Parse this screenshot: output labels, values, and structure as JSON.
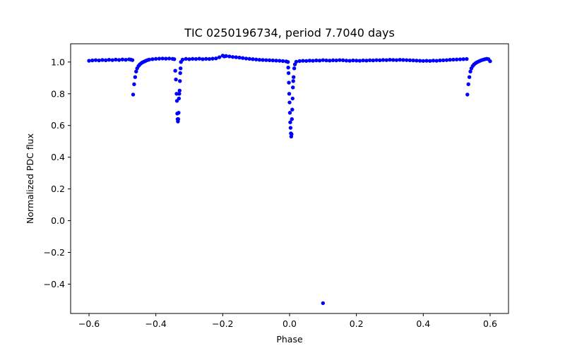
{
  "chart_data": {
    "type": "scatter",
    "title": "TIC 0250196734, period 7.7040 days",
    "xlabel": "Phase",
    "ylabel": "Normalized PDC flux",
    "xlim": [
      -0.655,
      0.655
    ],
    "ylim": [
      -0.585,
      1.115
    ],
    "xticks": [
      -0.6,
      -0.4,
      -0.2,
      0.0,
      0.2,
      0.4,
      0.6
    ],
    "xtick_labels": [
      "−0.6",
      "−0.4",
      "−0.2",
      "0.0",
      "0.2",
      "0.4",
      "0.6"
    ],
    "yticks": [
      -0.4,
      -0.2,
      0.0,
      0.2,
      0.4,
      0.6,
      0.8,
      1.0
    ],
    "ytick_labels": [
      "−0.4",
      "−0.2",
      "0.0",
      "0.2",
      "0.4",
      "0.6",
      "0.8",
      "1.0"
    ],
    "marker_color": "#0000ff",
    "grid": false,
    "series": [
      {
        "name": "PDC flux",
        "points": [
          [
            -0.6,
            1.008
          ],
          [
            -0.59,
            1.01
          ],
          [
            -0.58,
            1.012
          ],
          [
            -0.57,
            1.01
          ],
          [
            -0.56,
            1.013
          ],
          [
            -0.55,
            1.011
          ],
          [
            -0.54,
            1.014
          ],
          [
            -0.53,
            1.012
          ],
          [
            -0.52,
            1.015
          ],
          [
            -0.51,
            1.013
          ],
          [
            -0.5,
            1.016
          ],
          [
            -0.49,
            1.014
          ],
          [
            -0.48,
            1.017
          ],
          [
            -0.475,
            1.015
          ],
          [
            -0.47,
            1.012
          ],
          [
            -0.468,
            0.795
          ],
          [
            -0.465,
            0.86
          ],
          [
            -0.462,
            0.905
          ],
          [
            -0.459,
            0.94
          ],
          [
            -0.456,
            0.96
          ],
          [
            -0.452,
            0.975
          ],
          [
            -0.448,
            0.985
          ],
          [
            -0.444,
            0.992
          ],
          [
            -0.44,
            0.998
          ],
          [
            -0.435,
            1.003
          ],
          [
            -0.43,
            1.008
          ],
          [
            -0.425,
            1.012
          ],
          [
            -0.42,
            1.015
          ],
          [
            -0.41,
            1.018
          ],
          [
            -0.4,
            1.02
          ],
          [
            -0.39,
            1.021
          ],
          [
            -0.38,
            1.022
          ],
          [
            -0.37,
            1.021
          ],
          [
            -0.36,
            1.022
          ],
          [
            -0.35,
            1.02
          ],
          [
            -0.345,
            1.018
          ],
          [
            -0.342,
            0.945
          ],
          [
            -0.34,
            0.89
          ],
          [
            -0.338,
            0.8
          ],
          [
            -0.337,
            0.755
          ],
          [
            -0.336,
            0.675
          ],
          [
            -0.335,
            0.64
          ],
          [
            -0.334,
            0.625
          ],
          [
            -0.333,
            0.64
          ],
          [
            -0.332,
            0.68
          ],
          [
            -0.331,
            0.77
          ],
          [
            -0.33,
            0.8
          ],
          [
            -0.329,
            0.82
          ],
          [
            -0.328,
            0.88
          ],
          [
            -0.327,
            0.93
          ],
          [
            -0.326,
            0.96
          ],
          [
            -0.325,
            1.0
          ],
          [
            -0.32,
            1.015
          ],
          [
            -0.31,
            1.02
          ],
          [
            -0.3,
            1.018
          ],
          [
            -0.29,
            1.02
          ],
          [
            -0.28,
            1.019
          ],
          [
            -0.27,
            1.021
          ],
          [
            -0.26,
            1.018
          ],
          [
            -0.25,
            1.02
          ],
          [
            -0.24,
            1.019
          ],
          [
            -0.23,
            1.021
          ],
          [
            -0.22,
            1.023
          ],
          [
            -0.21,
            1.03
          ],
          [
            -0.2,
            1.04
          ],
          [
            -0.195,
            1.035
          ],
          [
            -0.19,
            1.038
          ],
          [
            -0.18,
            1.035
          ],
          [
            -0.17,
            1.032
          ],
          [
            -0.16,
            1.03
          ],
          [
            -0.15,
            1.028
          ],
          [
            -0.14,
            1.025
          ],
          [
            -0.13,
            1.022
          ],
          [
            -0.12,
            1.02
          ],
          [
            -0.11,
            1.018
          ],
          [
            -0.1,
            1.016
          ],
          [
            -0.09,
            1.014
          ],
          [
            -0.08,
            1.013
          ],
          [
            -0.07,
            1.012
          ],
          [
            -0.06,
            1.011
          ],
          [
            -0.05,
            1.01
          ],
          [
            -0.04,
            1.009
          ],
          [
            -0.03,
            1.008
          ],
          [
            -0.02,
            1.006
          ],
          [
            -0.01,
            1.004
          ],
          [
            -0.005,
            1.0
          ],
          [
            -0.004,
            0.965
          ],
          [
            -0.003,
            0.93
          ],
          [
            -0.002,
            0.87
          ],
          [
            -0.001,
            0.8
          ],
          [
            0.0,
            0.745
          ],
          [
            0.001,
            0.68
          ],
          [
            0.002,
            0.62
          ],
          [
            0.003,
            0.585
          ],
          [
            0.004,
            0.55
          ],
          [
            0.005,
            0.53
          ],
          [
            0.006,
            0.545
          ],
          [
            0.007,
            0.64
          ],
          [
            0.008,
            0.7
          ],
          [
            0.009,
            0.77
          ],
          [
            0.01,
            0.84
          ],
          [
            0.011,
            0.88
          ],
          [
            0.012,
            0.905
          ],
          [
            0.014,
            0.96
          ],
          [
            0.016,
            0.985
          ],
          [
            0.02,
            1.002
          ],
          [
            0.03,
            1.006
          ],
          [
            0.04,
            1.008
          ],
          [
            0.05,
            1.007
          ],
          [
            0.06,
            1.009
          ],
          [
            0.07,
            1.008
          ],
          [
            0.08,
            1.01
          ],
          [
            0.09,
            1.009
          ],
          [
            0.1,
            1.012
          ],
          [
            0.11,
            1.01
          ],
          [
            0.12,
            1.009
          ],
          [
            0.13,
            1.011
          ],
          [
            0.14,
            1.01
          ],
          [
            0.15,
            1.012
          ],
          [
            0.16,
            1.011
          ],
          [
            0.17,
            1.009
          ],
          [
            0.18,
            1.008
          ],
          [
            0.19,
            1.01
          ],
          [
            0.2,
            1.009
          ],
          [
            0.21,
            1.008
          ],
          [
            0.22,
            1.01
          ],
          [
            0.23,
            1.009
          ],
          [
            0.24,
            1.011
          ],
          [
            0.25,
            1.01
          ],
          [
            0.26,
            1.012
          ],
          [
            0.27,
            1.011
          ],
          [
            0.28,
            1.013
          ],
          [
            0.29,
            1.012
          ],
          [
            0.3,
            1.014
          ],
          [
            0.31,
            1.013
          ],
          [
            0.32,
            1.012
          ],
          [
            0.33,
            1.014
          ],
          [
            0.34,
            1.013
          ],
          [
            0.35,
            1.012
          ],
          [
            0.36,
            1.011
          ],
          [
            0.37,
            1.01
          ],
          [
            0.38,
            1.009
          ],
          [
            0.39,
            1.008
          ],
          [
            0.4,
            1.007
          ],
          [
            0.41,
            1.008
          ],
          [
            0.42,
            1.007
          ],
          [
            0.43,
            1.009
          ],
          [
            0.44,
            1.008
          ],
          [
            0.45,
            1.01
          ],
          [
            0.46,
            1.011
          ],
          [
            0.47,
            1.012
          ],
          [
            0.48,
            1.014
          ],
          [
            0.49,
            1.015
          ],
          [
            0.5,
            1.016
          ],
          [
            0.51,
            1.017
          ],
          [
            0.52,
            1.018
          ],
          [
            0.53,
            1.019
          ],
          [
            0.532,
            0.795
          ],
          [
            0.535,
            0.86
          ],
          [
            0.538,
            0.905
          ],
          [
            0.541,
            0.94
          ],
          [
            0.544,
            0.96
          ],
          [
            0.548,
            0.975
          ],
          [
            0.552,
            0.985
          ],
          [
            0.556,
            0.992
          ],
          [
            0.56,
            0.998
          ],
          [
            0.565,
            1.003
          ],
          [
            0.57,
            1.008
          ],
          [
            0.575,
            1.012
          ],
          [
            0.58,
            1.015
          ],
          [
            0.585,
            1.018
          ],
          [
            0.59,
            1.02
          ],
          [
            0.595,
            1.018
          ],
          [
            0.6,
            1.005
          ],
          [
            0.1,
            -0.52
          ]
        ]
      }
    ]
  }
}
